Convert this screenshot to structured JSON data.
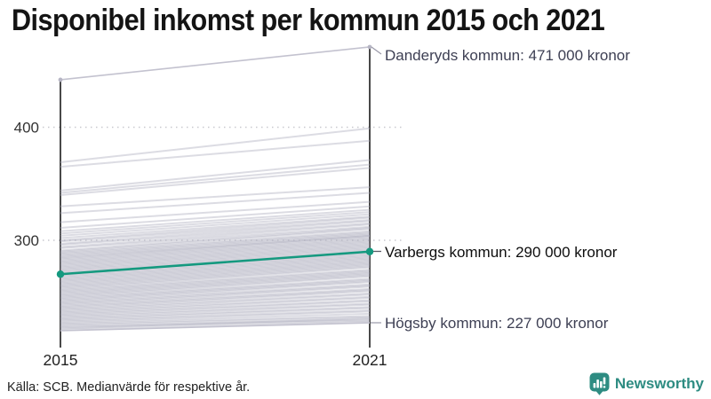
{
  "title": "Disponibel inkomst per kommun 2015 och 2021",
  "source": "Källa: SCB. Medianvärde för respektive år.",
  "brand": {
    "name": "Newsworthy",
    "color": "#2e8c82",
    "icon": "bar-chart-bubble-icon"
  },
  "colors": {
    "highlight": "#14997f",
    "background_line": "rgba(178,177,192,0.45)",
    "annotated_gray_line": "#c3c2cf",
    "gray_dot": "#b6b5c4",
    "axis": "#1b1b1b",
    "grid": "#c9c9cf",
    "leader": "#9a99a8",
    "annotation_text": "#3e4054"
  },
  "chart_data": {
    "type": "line",
    "subtype": "slope-chart",
    "x": [
      2015,
      2021
    ],
    "x_labels": [
      "2015",
      "2021"
    ],
    "y_ticks": [
      300,
      400
    ],
    "y_tick_labels": [
      "300",
      "400"
    ],
    "ylim": [
      215,
      475
    ],
    "unit": "tusen kronor",
    "grid": "dotted-horizontal",
    "annotations": [
      {
        "series": "Danderyds kommun",
        "label": "Danderyds kommun: 471 000 kronor",
        "values": [
          442,
          471
        ],
        "highlight": false,
        "dots": true
      },
      {
        "series": "Varbergs kommun",
        "label": "Varbergs kommun: 290 000 kronor",
        "values": [
          270,
          290
        ],
        "highlight": true,
        "dots": true
      },
      {
        "series": "Högsby kommun",
        "label": "Högsby kommun: 227 000 kronor",
        "values": [
          220,
          227
        ],
        "highlight": false,
        "dots": false
      }
    ],
    "background_lines": [
      [
        369,
        399
      ],
      [
        365,
        388
      ],
      [
        344,
        371
      ],
      [
        342,
        367
      ],
      [
        340,
        364
      ],
      [
        330,
        347
      ],
      [
        324,
        342
      ],
      [
        316,
        334
      ],
      [
        311,
        330
      ],
      [
        308,
        327
      ],
      [
        306,
        325
      ],
      [
        304,
        323
      ],
      [
        302,
        321
      ],
      [
        300,
        320
      ],
      [
        299,
        318
      ],
      [
        297,
        317
      ],
      [
        296,
        315
      ],
      [
        294,
        314
      ],
      [
        293,
        312
      ],
      [
        291,
        311
      ],
      [
        290,
        310
      ],
      [
        289,
        308
      ],
      [
        288,
        307
      ],
      [
        287,
        306
      ],
      [
        286,
        305
      ],
      [
        285,
        304
      ],
      [
        284,
        304
      ],
      [
        283,
        303
      ],
      [
        282,
        302
      ],
      [
        281,
        301
      ],
      [
        280,
        300
      ],
      [
        279,
        299
      ],
      [
        278,
        298
      ],
      [
        277,
        297
      ],
      [
        276,
        296
      ],
      [
        275,
        295
      ],
      [
        274,
        294
      ],
      [
        273,
        293
      ],
      [
        272,
        292
      ],
      [
        271,
        291
      ],
      [
        270,
        289
      ],
      [
        269,
        288
      ],
      [
        268,
        287
      ],
      [
        267,
        286
      ],
      [
        266,
        285
      ],
      [
        265,
        284
      ],
      [
        264,
        283
      ],
      [
        263,
        282
      ],
      [
        262,
        281
      ],
      [
        261,
        280
      ],
      [
        260,
        279
      ],
      [
        259,
        278
      ],
      [
        258,
        277
      ],
      [
        257,
        276
      ],
      [
        256,
        274
      ],
      [
        255,
        273
      ],
      [
        254,
        272
      ],
      [
        253,
        271
      ],
      [
        252,
        270
      ],
      [
        251,
        269
      ],
      [
        250,
        268
      ],
      [
        249,
        266
      ],
      [
        248,
        265
      ],
      [
        247,
        264
      ],
      [
        246,
        263
      ],
      [
        245,
        261
      ],
      [
        244,
        260
      ],
      [
        243,
        259
      ],
      [
        242,
        257
      ],
      [
        241,
        256
      ],
      [
        240,
        255
      ],
      [
        239,
        253
      ],
      [
        238,
        252
      ],
      [
        237,
        250
      ],
      [
        236,
        249
      ],
      [
        235,
        247
      ],
      [
        234,
        246
      ],
      [
        233,
        244
      ],
      [
        232,
        243
      ],
      [
        231,
        241
      ],
      [
        230,
        240
      ],
      [
        229,
        238
      ],
      [
        228,
        237
      ],
      [
        227,
        235
      ],
      [
        226,
        233
      ],
      [
        225,
        232
      ],
      [
        224,
        230
      ],
      [
        223,
        229
      ],
      [
        222,
        231
      ],
      [
        221,
        228
      ]
    ]
  }
}
